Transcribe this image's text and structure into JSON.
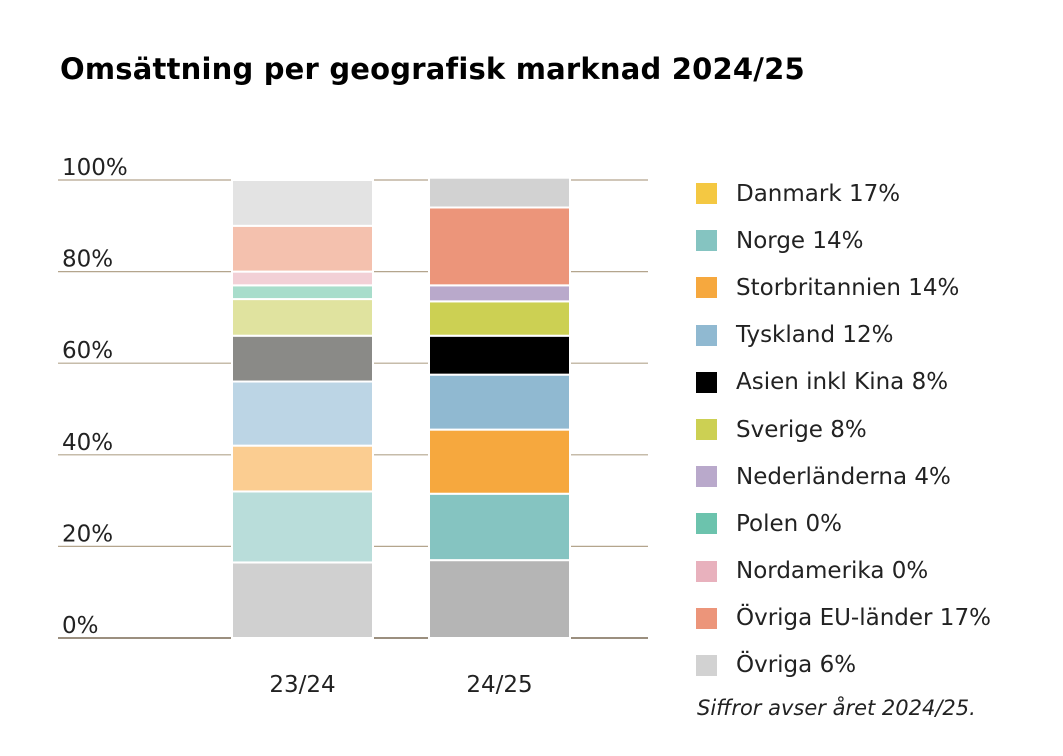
{
  "title": "Omsättning per geografisk marknad 2024/25",
  "footnote": "Siffror avser året 2024/25.",
  "chart_data": {
    "type": "bar",
    "stacked": true,
    "title": "Omsättning per geografisk marknad 2024/25",
    "categories": [
      "23/24",
      "24/25"
    ],
    "ylim": [
      0,
      100
    ],
    "yticks": [
      "0%",
      "20%",
      "40%",
      "60%",
      "80%",
      "100%"
    ],
    "grid": true,
    "legend_position": "right",
    "series": [
      {
        "name": "Danmark 17%",
        "values": [
          16.5,
          17
        ],
        "colors": [
          "#d0d0d0",
          "#b5b5b5"
        ],
        "legend_color": "#f4c842"
      },
      {
        "name": "Norge 14%",
        "values": [
          15.5,
          14.5
        ],
        "colors": [
          "#b9ddda",
          "#85c4c1"
        ],
        "legend_color": "#85c4c1"
      },
      {
        "name": "Storbritannien 14%",
        "values": [
          10,
          14
        ],
        "colors": [
          "#fbcd91",
          "#f6a83e"
        ],
        "legend_color": "#f6a83e"
      },
      {
        "name": "Tyskland 12%",
        "values": [
          14,
          12
        ],
        "colors": [
          "#bcd5e5",
          "#90b9d1"
        ],
        "legend_color": "#90b9d1"
      },
      {
        "name": "Asien inkl Kina 8%",
        "values": [
          10,
          8.5
        ],
        "colors": [
          "#8a8a87",
          "#000000"
        ],
        "legend_color": "#000000"
      },
      {
        "name": "Sverige 8%",
        "values": [
          8,
          7.5
        ],
        "colors": [
          "#e0e39f",
          "#ccd053"
        ],
        "legend_color": "#ccd053"
      },
      {
        "name": "Nederländerna 4%",
        "values": [
          0,
          3.5
        ],
        "colors": [
          "#ffffff",
          "#b9a9cb"
        ],
        "legend_color": "#b9a9cb"
      },
      {
        "name": "Polen 0%",
        "values": [
          3,
          0
        ],
        "colors": [
          "#a8ddcb",
          "#6cc3ad"
        ],
        "legend_color": "#6cc3ad"
      },
      {
        "name": "Nordamerika 0%",
        "values": [
          3,
          0
        ],
        "colors": [
          "#f2d0d6",
          "#e8b1bd"
        ],
        "legend_color": "#e8b1bd"
      },
      {
        "name": "Övriga EU-länder 17%",
        "values": [
          10,
          17
        ],
        "colors": [
          "#f4c1ae",
          "#ec957a"
        ],
        "legend_color": "#ec957a"
      },
      {
        "name": "Övriga 6%",
        "values": [
          10,
          6.5
        ],
        "colors": [
          "#e3e3e3",
          "#d2d2d2"
        ],
        "legend_color": "#d2d2d2"
      }
    ]
  }
}
